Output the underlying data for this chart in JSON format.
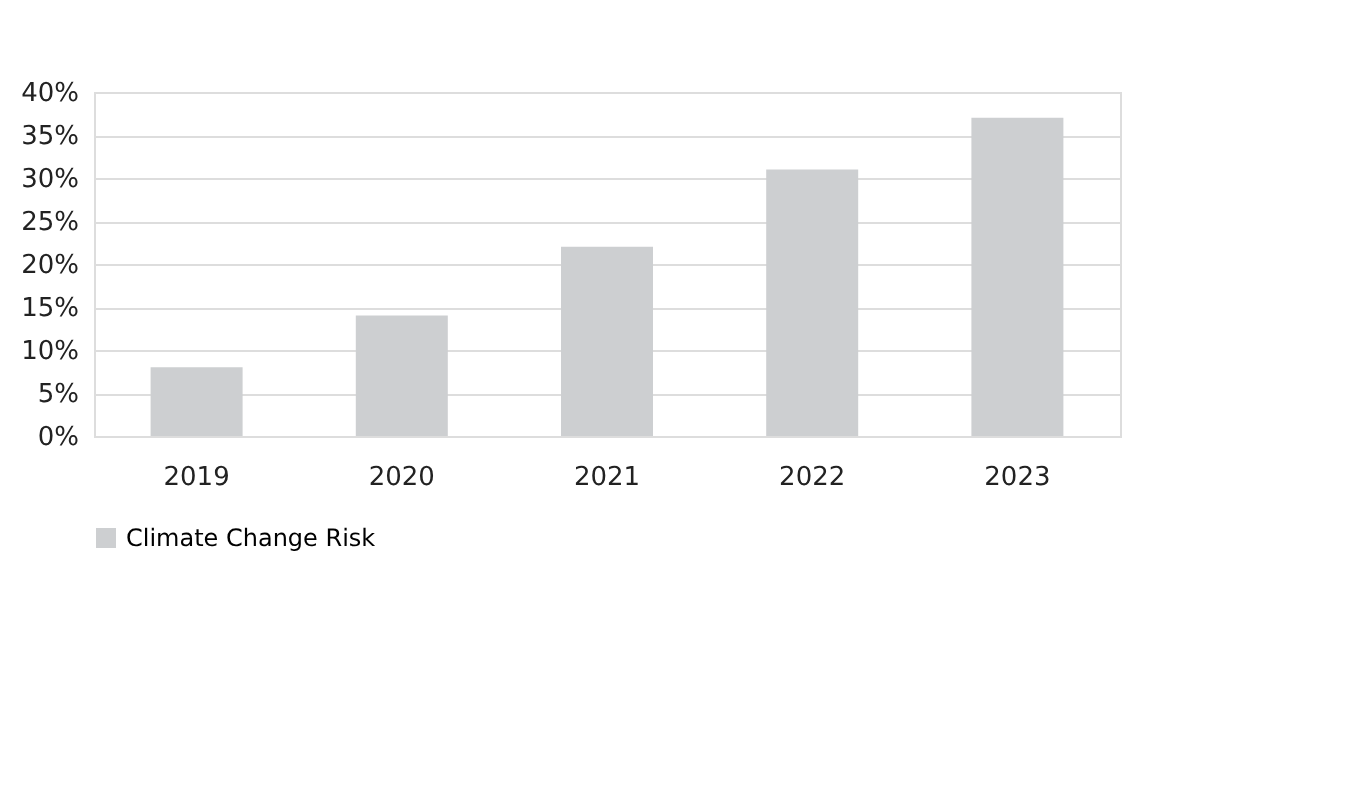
{
  "chart_data": {
    "type": "bar",
    "categories": [
      "2019",
      "2020",
      "2021",
      "2022",
      "2023"
    ],
    "series": [
      {
        "name": "Climate Change Risk",
        "color": "#cdcfd1",
        "values": [
          8,
          14,
          22,
          31,
          37
        ]
      }
    ],
    "ylim": [
      0,
      40
    ],
    "yticks": [
      {
        "value": 0,
        "label": "0%"
      },
      {
        "value": 5,
        "label": "5%"
      },
      {
        "value": 10,
        "label": "10%"
      },
      {
        "value": 15,
        "label": "15%"
      },
      {
        "value": 20,
        "label": "20%"
      },
      {
        "value": 25,
        "label": "25%"
      },
      {
        "value": 30,
        "label": "30%"
      },
      {
        "value": 35,
        "label": "35%"
      },
      {
        "value": 40,
        "label": "40%"
      }
    ],
    "grid": "y",
    "legend": "bottom"
  }
}
